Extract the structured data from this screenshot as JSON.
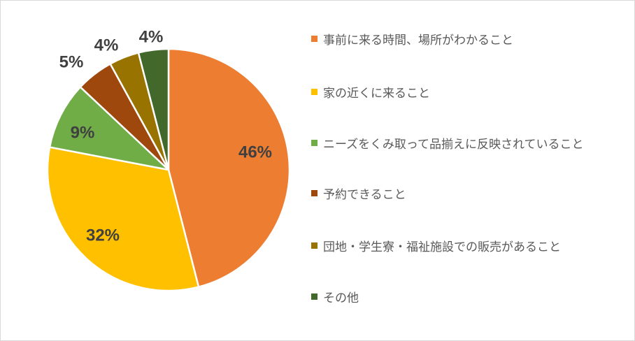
{
  "chart_data": {
    "type": "pie",
    "categories": [
      "事前に来る時間、場所がわかること",
      "家の近くに来ること",
      "ニーズをくみ取って品揃えに反映されていること",
      "予約できること",
      "団地・学生寮・福祉施設での販売があること",
      "その他"
    ],
    "values": [
      46,
      32,
      9,
      5,
      4,
      4
    ],
    "labels": [
      "46%",
      "32%",
      "9%",
      "5%",
      "4%",
      "4%"
    ],
    "colors": [
      "#ED7D31",
      "#FFC000",
      "#70AD47",
      "#9E480E",
      "#997300",
      "#43682B"
    ],
    "start_angle_deg": 0,
    "direction": "clockwise",
    "legend_position": "right"
  }
}
